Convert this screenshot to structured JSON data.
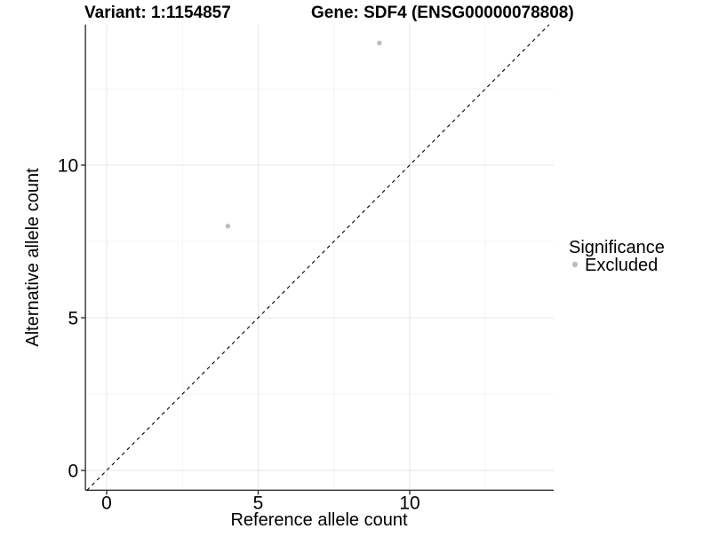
{
  "chart_data": {
    "type": "scatter",
    "title_variant": "Variant: 1:1154857",
    "title_gene": "Gene: SDF4 (ENSG00000078808)",
    "xlabel": "Reference allele count",
    "ylabel": "Alternative allele count",
    "xlim": [
      -0.7,
      14.75
    ],
    "ylim": [
      -0.65,
      14.6
    ],
    "x_major_ticks": [
      0,
      5,
      10
    ],
    "y_major_ticks": [
      0,
      5,
      10
    ],
    "x_minor_ticks": [
      2.5,
      7.5,
      12.5
    ],
    "y_minor_ticks": [
      2.5,
      7.5,
      12.5
    ],
    "grid": true,
    "series": [
      {
        "name": "Excluded",
        "color": "#bebebe",
        "points": [
          {
            "x": 4,
            "y": 8
          },
          {
            "x": 9,
            "y": 14
          }
        ]
      }
    ],
    "reference_line": {
      "type": "identity y=x",
      "style": "dashed",
      "color": "#000000"
    },
    "legend": {
      "title": "Significance",
      "position": "right",
      "items": [
        {
          "label": "Excluded",
          "color": "#bebebe"
        }
      ]
    },
    "colors": {
      "background": "#ffffff",
      "grid_major": "#e6e6e6",
      "grid_minor": "#f2f2f2",
      "axis_line": "#333333",
      "text": "#000000",
      "point": "#bebebe"
    }
  }
}
